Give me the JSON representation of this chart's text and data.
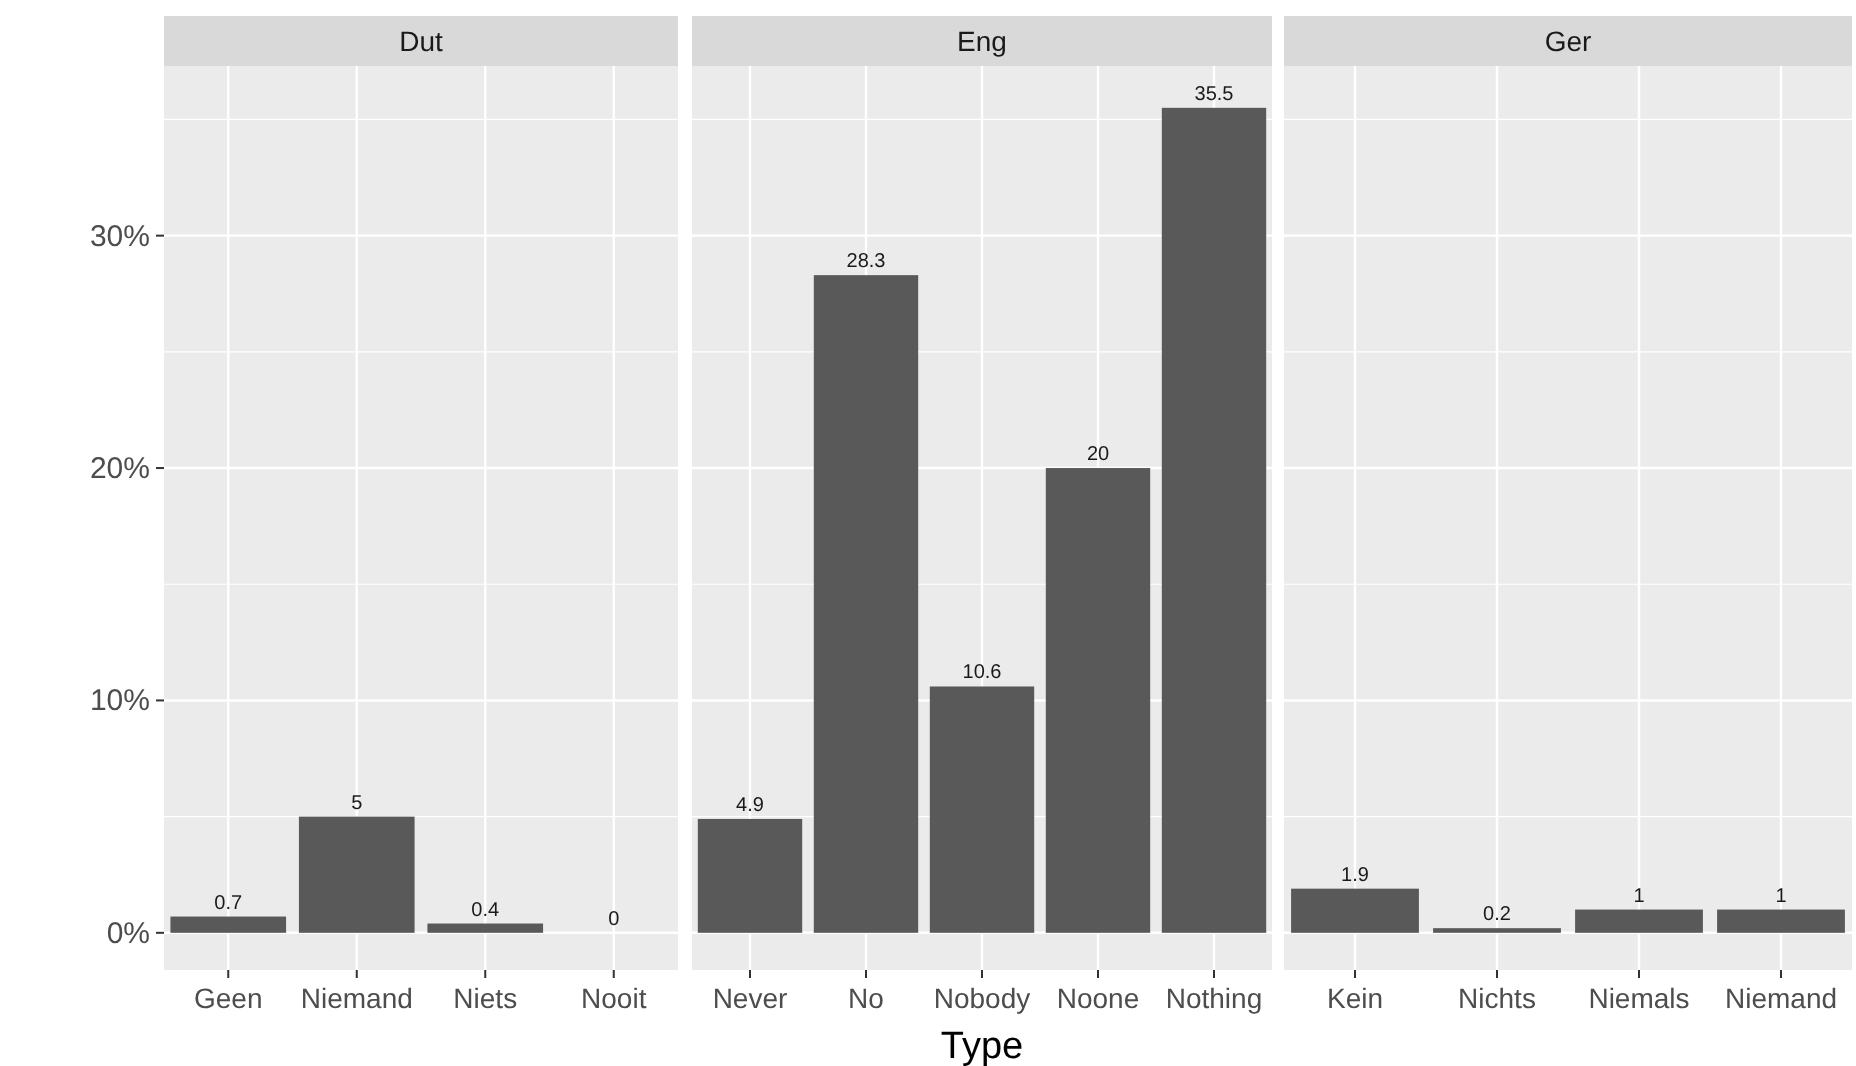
{
  "chart_data": [
    {
      "type": "bar",
      "title": "Dut",
      "categories": [
        "Geen",
        "Niemand",
        "Niets",
        "Nooit"
      ],
      "values": [
        0.7,
        5,
        0.4,
        0
      ],
      "color": "#595959",
      "data_labels": true,
      "ylim": [
        -1.6,
        37.3
      ],
      "yticks": [
        {
          "value": 0,
          "label": "0%"
        },
        {
          "value": 10,
          "label": "10%"
        },
        {
          "value": 20,
          "label": "20%"
        },
        {
          "value": 30,
          "label": "30%"
        }
      ],
      "grid": true
    },
    {
      "type": "bar",
      "title": "Eng",
      "xlabel": "Type",
      "categories": [
        "Never",
        "No",
        "Nobody",
        "Noone",
        "Nothing"
      ],
      "values": [
        4.9,
        28.3,
        10.6,
        20,
        35.5
      ],
      "color": "#595959",
      "data_labels": true,
      "ylim": [
        -1.6,
        37.3
      ],
      "yticks": [
        {
          "value": 0,
          "label": null
        },
        {
          "value": 10,
          "label": null
        },
        {
          "value": 20,
          "label": null
        },
        {
          "value": 30,
          "label": null
        }
      ],
      "grid": true,
      "tick_labels": "x"
    },
    {
      "type": "bar",
      "title": "Ger",
      "categories": [
        "Kein",
        "Nichts",
        "Niemals",
        "Niemand"
      ],
      "values": [
        1.9,
        0.2,
        1,
        1
      ],
      "color": "#595959",
      "data_labels": true,
      "ylim": [
        -1.6,
        37.3
      ],
      "yticks": [
        {
          "value": 0,
          "label": null
        },
        {
          "value": 10,
          "label": null
        },
        {
          "value": 20,
          "label": null
        },
        {
          "value": 30,
          "label": null
        }
      ],
      "grid": true,
      "tick_labels": "x"
    }
  ]
}
